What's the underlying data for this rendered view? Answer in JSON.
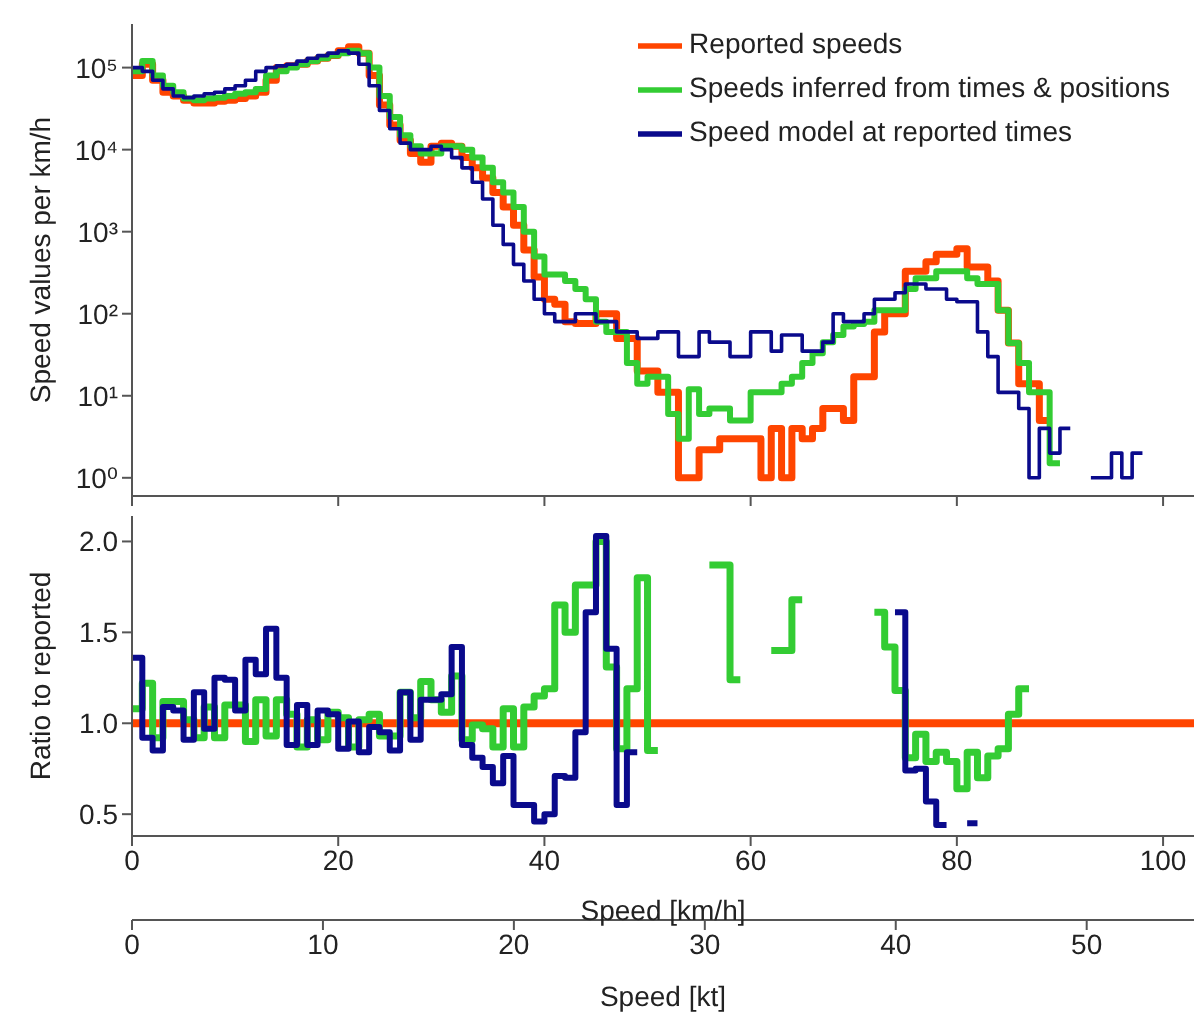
{
  "chart_data": [
    {
      "type": "step",
      "ylabel": "Speed values per km/h",
      "log": "y",
      "legend": "top right",
      "tick_labels": "y",
      "x": [
        0,
        1,
        2,
        3,
        4,
        5,
        6,
        7,
        8,
        9,
        10,
        11,
        12,
        13,
        14,
        15,
        16,
        17,
        18,
        19,
        20,
        21,
        22,
        23,
        24,
        25,
        26,
        27,
        28,
        29,
        30,
        31,
        32,
        33,
        34,
        35,
        36,
        37,
        38,
        39,
        40,
        41,
        42,
        43,
        44,
        45,
        46,
        47,
        48,
        49,
        50,
        51,
        52,
        53,
        54,
        55,
        56,
        57,
        58,
        59,
        60,
        61,
        62,
        63,
        64,
        65,
        66,
        67,
        68,
        69,
        70,
        71,
        72,
        73,
        74,
        75,
        76,
        77,
        78,
        79,
        80,
        81,
        82,
        83,
        84,
        85,
        86,
        87,
        88,
        89,
        90,
        91,
        92,
        93,
        94,
        95,
        96,
        97,
        98
      ],
      "xlim": [
        0,
        103
      ],
      "xticks": [
        {
          "value": 0,
          "label": null
        },
        {
          "value": 20,
          "label": null
        },
        {
          "value": 40,
          "label": null
        },
        {
          "value": 60,
          "label": null
        },
        {
          "value": 80,
          "label": null
        },
        {
          "value": 100,
          "label": null
        }
      ],
      "ylim": [
        0.6,
        340000
      ],
      "yticks": [
        {
          "value": 1,
          "label": "10⁰"
        },
        {
          "value": 10,
          "label": "10¹"
        },
        {
          "value": 100,
          "label": "10²"
        },
        {
          "value": 1000,
          "label": "10³"
        },
        {
          "value": 10000,
          "label": "10⁴"
        },
        {
          "value": 100000,
          "label": "10⁵"
        }
      ],
      "series": [
        {
          "name": "Reported speeds",
          "color": "#ff4500",
          "values": [
            80000,
            110000,
            70000,
            50000,
            45000,
            40000,
            37000,
            37000,
            39000,
            40000,
            42000,
            45000,
            50000,
            70000,
            100000,
            105000,
            110000,
            120000,
            130000,
            140000,
            160000,
            180000,
            150000,
            80000,
            35000,
            20000,
            13000,
            9000,
            7000,
            11000,
            12000,
            11000,
            8000,
            6000,
            4500,
            3000,
            2000,
            1200,
            600,
            280,
            150,
            130,
            80,
            76,
            76,
            100,
            100,
            50,
            50,
            20,
            20,
            11,
            11,
            1,
            1,
            2.2,
            2.2,
            3,
            3,
            3,
            3,
            1,
            4,
            1,
            4,
            3,
            4,
            7,
            7,
            5,
            17,
            17,
            60,
            100,
            100,
            330,
            330,
            430,
            530,
            530,
            620,
            370,
            370,
            250,
            110,
            44,
            14,
            14,
            5,
            5,
            null,
            null,
            null,
            null,
            null,
            null,
            null,
            null,
            null
          ]
        },
        {
          "name": "Speeds inferred from times & positions",
          "color": "#33cc33",
          "values": [
            90000,
            120000,
            80000,
            60000,
            50000,
            42000,
            40000,
            42000,
            43000,
            45000,
            48000,
            50000,
            55000,
            80000,
            90000,
            100000,
            110000,
            120000,
            130000,
            140000,
            150000,
            160000,
            150000,
            100000,
            45000,
            25000,
            15000,
            11000,
            9000,
            9000,
            11000,
            11000,
            10000,
            8000,
            6000,
            4000,
            3000,
            2000,
            1000,
            500,
            300,
            300,
            250,
            200,
            150,
            80,
            60,
            60,
            25,
            14,
            17,
            17,
            6,
            3,
            12,
            6,
            7,
            7,
            5,
            5,
            11,
            11,
            11,
            14,
            17,
            25,
            33,
            45,
            55,
            70,
            75,
            80,
            110,
            110,
            110,
            200,
            270,
            270,
            330,
            330,
            330,
            270,
            230,
            230,
            110,
            44,
            25,
            11,
            11,
            1.5,
            1.5,
            null,
            null,
            null,
            null,
            null,
            null,
            null,
            null
          ]
        },
        {
          "name": "Speed model at reported times",
          "color": "#0a0a8c",
          "values": [
            100000,
            90000,
            70000,
            55000,
            45000,
            43000,
            45000,
            48000,
            50000,
            55000,
            60000,
            70000,
            90000,
            100000,
            105000,
            110000,
            120000,
            130000,
            140000,
            150000,
            160000,
            150000,
            110000,
            60000,
            30000,
            18000,
            12000,
            10000,
            10000,
            11000,
            10000,
            8000,
            6000,
            4000,
            2500,
            1200,
            700,
            400,
            250,
            150,
            100,
            80,
            80,
            100,
            100,
            80,
            80,
            60,
            60,
            50,
            50,
            60,
            60,
            30,
            30,
            60,
            45,
            45,
            30,
            30,
            60,
            60,
            35,
            55,
            55,
            35,
            35,
            45,
            100,
            80,
            80,
            100,
            150,
            150,
            180,
            230,
            230,
            200,
            200,
            150,
            140,
            140,
            60,
            30,
            11,
            11,
            7,
            1,
            4,
            2,
            4,
            4,
            null,
            1,
            1,
            2,
            1,
            2,
            2
          ]
        }
      ]
    },
    {
      "type": "step",
      "xlabel": "Speed [km/h]",
      "ylabel": "Ratio to reported",
      "x2label": "Speed [kt]",
      "x": [
        0,
        1,
        2,
        3,
        4,
        5,
        6,
        7,
        8,
        9,
        10,
        11,
        12,
        13,
        14,
        15,
        16,
        17,
        18,
        19,
        20,
        21,
        22,
        23,
        24,
        25,
        26,
        27,
        28,
        29,
        30,
        31,
        32,
        33,
        34,
        35,
        36,
        37,
        38,
        39,
        40,
        41,
        42,
        43,
        44,
        45,
        46,
        47,
        48,
        49,
        50,
        51,
        52,
        53,
        54,
        55,
        56,
        57,
        58,
        59,
        60,
        61,
        62,
        63,
        64,
        65,
        66,
        67,
        68,
        69,
        70,
        71,
        72,
        73,
        74,
        75,
        76,
        77,
        78,
        79,
        80,
        81,
        82,
        83,
        84,
        85,
        86,
        87
      ],
      "xlim": [
        0,
        103
      ],
      "xticks": [
        0,
        20,
        40,
        60,
        80,
        100
      ],
      "x2lim": [
        0,
        55.62
      ],
      "x2ticks": [
        0,
        10,
        20,
        30,
        40,
        50
      ],
      "ylim": [
        0.38,
        2.14
      ],
      "yticks": [
        0.5,
        {
          "value": 1,
          "label": "1.0"
        },
        1.5,
        {
          "value": 2,
          "label": "2.0"
        }
      ],
      "ref_lines": [
        {
          "axis": "y",
          "value": 1,
          "color": "#ff4500"
        }
      ],
      "series": [
        {
          "color": "#33cc33",
          "values": [
            1.08,
            1.22,
            0.92,
            1.12,
            1.12,
            1.02,
            0.92,
            1.09,
            0.92,
            1.1,
            1.1,
            0.9,
            1.13,
            0.93,
            1.13,
            1.05,
            0.87,
            1.02,
            0.91,
            1.06,
            1.03,
            0.87,
            1.02,
            1.05,
            0.93,
            0.93,
            1.17,
            1.03,
            1.23,
            1.13,
            1.06,
            1.26,
            0.91,
            0.99,
            0.97,
            0.87,
            1.08,
            0.87,
            1.09,
            1.15,
            1.19,
            1.65,
            1.5,
            1.76,
            1.76,
            2.0,
            1.31,
            0.86,
            1.19,
            1.8,
            0.85,
            0.85,
            null,
            null,
            null,
            null,
            1.87,
            1.87,
            1.24,
            1.24,
            null,
            null,
            1.4,
            1.4,
            1.68,
            1.68,
            null,
            null,
            null,
            null,
            null,
            null,
            1.61,
            1.42,
            1.18,
            0.81,
            0.94,
            0.79,
            0.84,
            0.79,
            0.64,
            0.84,
            0.7,
            0.82,
            0.86,
            1.05,
            1.19,
            1.19
          ]
        },
        {
          "color": "#0a0a8c",
          "values": [
            1.36,
            0.92,
            0.85,
            1.09,
            1.07,
            0.91,
            1.17,
            0.97,
            1.25,
            1.24,
            1.07,
            1.35,
            1.27,
            1.52,
            1.25,
            0.88,
            1.1,
            0.88,
            1.07,
            1.05,
            0.86,
            1.01,
            0.84,
            0.98,
            0.95,
            0.85,
            1.17,
            0.91,
            1.13,
            1.13,
            1.16,
            1.42,
            0.88,
            0.81,
            0.76,
            0.67,
            0.82,
            0.55,
            0.55,
            0.46,
            0.5,
            0.71,
            0.7,
            0.95,
            1.61,
            2.03,
            1.41,
            0.55,
            0.84,
            0.84,
            null,
            null,
            null,
            null,
            null,
            null,
            null,
            null,
            null,
            null,
            null,
            null,
            null,
            null,
            null,
            null,
            null,
            null,
            null,
            null,
            null,
            null,
            null,
            null,
            1.61,
            0.74,
            0.75,
            0.57,
            0.44,
            0.44,
            null,
            0.45,
            0.45,
            null,
            null,
            null,
            null,
            null
          ]
        }
      ]
    }
  ]
}
